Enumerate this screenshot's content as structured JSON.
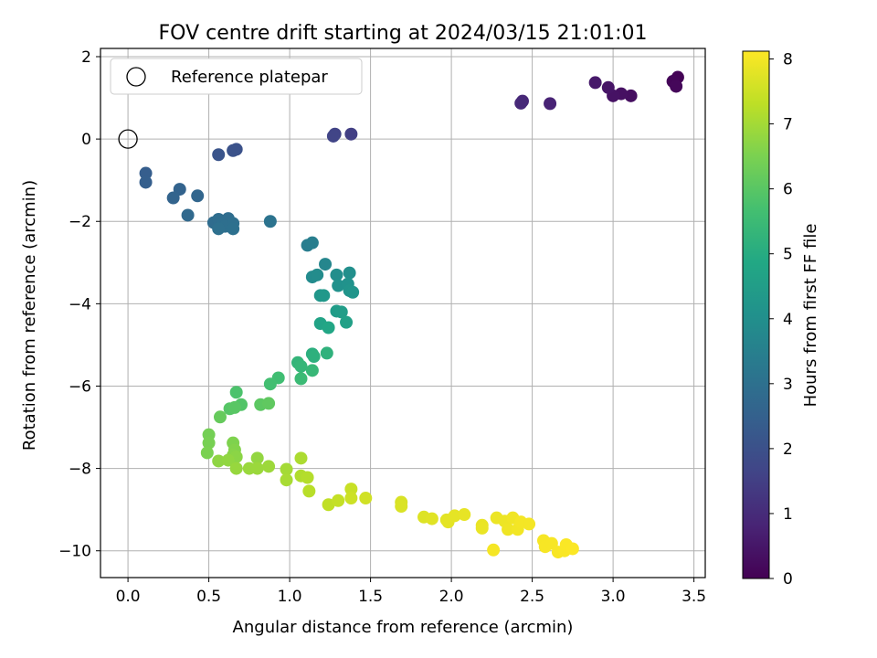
{
  "chart_data": {
    "type": "scatter",
    "title": "FOV centre drift starting at 2024/03/15 21:01:01",
    "xlabel": "Angular distance from reference (arcmin)",
    "ylabel": "Rotation from reference (arcmin)",
    "colorbar_label": "Hours from first FF file",
    "xlim": [
      -0.17,
      3.57
    ],
    "ylim": [
      -10.65,
      2.2
    ],
    "x_ticks": [
      0.0,
      0.5,
      1.0,
      1.5,
      2.0,
      2.5,
      3.0,
      3.5
    ],
    "x_tick_labels": [
      "0.0",
      "0.5",
      "1.0",
      "1.5",
      "2.0",
      "2.5",
      "3.0",
      "3.5"
    ],
    "y_ticks": [
      2,
      0,
      -2,
      -4,
      -6,
      -8,
      -10
    ],
    "y_tick_labels": [
      "2",
      "0",
      "−2",
      "−4",
      "−6",
      "−8",
      "−10"
    ],
    "colorbar_range": [
      0,
      8.12
    ],
    "colorbar_ticks": [
      0,
      1,
      2,
      3,
      4,
      5,
      6,
      7,
      8
    ],
    "colorbar_tick_labels": [
      "0",
      "1",
      "2",
      "3",
      "4",
      "5",
      "6",
      "7",
      "8"
    ],
    "colormap": "viridis",
    "grid": true,
    "legend_position": "upper-left",
    "legend": [
      {
        "label": "Reference platepar",
        "marker": "open-circle"
      }
    ],
    "reference_point": {
      "x": 0.0,
      "y": 0.0
    },
    "points": [
      {
        "x": 3.4,
        "y": 1.5,
        "t": 0.05
      },
      {
        "x": 3.37,
        "y": 1.4,
        "t": 0.1
      },
      {
        "x": 3.39,
        "y": 1.28,
        "t": 0.15
      },
      {
        "x": 3.11,
        "y": 1.05,
        "t": 0.3
      },
      {
        "x": 3.05,
        "y": 1.1,
        "t": 0.35
      },
      {
        "x": 3.0,
        "y": 1.05,
        "t": 0.4
      },
      {
        "x": 2.97,
        "y": 1.25,
        "t": 0.45
      },
      {
        "x": 2.89,
        "y": 1.37,
        "t": 0.55
      },
      {
        "x": 2.61,
        "y": 0.86,
        "t": 0.8
      },
      {
        "x": 2.44,
        "y": 0.92,
        "t": 0.9
      },
      {
        "x": 2.43,
        "y": 0.87,
        "t": 0.95
      },
      {
        "x": 1.38,
        "y": 0.12,
        "t": 1.5
      },
      {
        "x": 1.28,
        "y": 0.12,
        "t": 1.6
      },
      {
        "x": 1.27,
        "y": 0.07,
        "t": 1.65
      },
      {
        "x": 0.67,
        "y": -0.25,
        "t": 2.0
      },
      {
        "x": 0.65,
        "y": -0.28,
        "t": 2.05
      },
      {
        "x": 0.56,
        "y": -0.38,
        "t": 2.1
      },
      {
        "x": 0.11,
        "y": -0.83,
        "t": 2.4
      },
      {
        "x": 0.11,
        "y": -1.05,
        "t": 2.45
      },
      {
        "x": 0.32,
        "y": -1.22,
        "t": 2.55
      },
      {
        "x": 0.28,
        "y": -1.43,
        "t": 2.6
      },
      {
        "x": 0.43,
        "y": -1.38,
        "t": 2.65
      },
      {
        "x": 0.37,
        "y": -1.85,
        "t": 2.75
      },
      {
        "x": 0.53,
        "y": -2.03,
        "t": 2.85
      },
      {
        "x": 0.56,
        "y": -1.95,
        "t": 2.88
      },
      {
        "x": 0.62,
        "y": -1.93,
        "t": 2.9
      },
      {
        "x": 0.58,
        "y": -2.08,
        "t": 2.92
      },
      {
        "x": 0.6,
        "y": -2.12,
        "t": 2.94
      },
      {
        "x": 0.65,
        "y": -2.05,
        "t": 2.96
      },
      {
        "x": 0.56,
        "y": -2.18,
        "t": 2.98
      },
      {
        "x": 0.65,
        "y": -2.18,
        "t": 3.0
      },
      {
        "x": 0.88,
        "y": -2.0,
        "t": 3.1
      },
      {
        "x": 1.11,
        "y": -2.58,
        "t": 3.4
      },
      {
        "x": 1.14,
        "y": -2.52,
        "t": 3.45
      },
      {
        "x": 1.22,
        "y": -3.04,
        "t": 3.7
      },
      {
        "x": 1.14,
        "y": -3.35,
        "t": 3.85
      },
      {
        "x": 1.17,
        "y": -3.3,
        "t": 3.9
      },
      {
        "x": 1.29,
        "y": -3.3,
        "t": 3.95
      },
      {
        "x": 1.37,
        "y": -3.25,
        "t": 4.0
      },
      {
        "x": 1.3,
        "y": -3.56,
        "t": 4.05
      },
      {
        "x": 1.36,
        "y": -3.52,
        "t": 4.1
      },
      {
        "x": 1.37,
        "y": -3.68,
        "t": 4.15
      },
      {
        "x": 1.39,
        "y": -3.72,
        "t": 4.2
      },
      {
        "x": 1.19,
        "y": -3.8,
        "t": 4.25
      },
      {
        "x": 1.21,
        "y": -3.8,
        "t": 4.3
      },
      {
        "x": 1.29,
        "y": -4.18,
        "t": 4.45
      },
      {
        "x": 1.32,
        "y": -4.2,
        "t": 4.5
      },
      {
        "x": 1.35,
        "y": -4.45,
        "t": 4.6
      },
      {
        "x": 1.19,
        "y": -4.48,
        "t": 4.7
      },
      {
        "x": 1.24,
        "y": -4.58,
        "t": 4.8
      },
      {
        "x": 1.14,
        "y": -5.22,
        "t": 5.1
      },
      {
        "x": 1.15,
        "y": -5.28,
        "t": 5.15
      },
      {
        "x": 1.23,
        "y": -5.2,
        "t": 5.2
      },
      {
        "x": 1.05,
        "y": -5.43,
        "t": 5.3
      },
      {
        "x": 1.07,
        "y": -5.52,
        "t": 5.35
      },
      {
        "x": 1.14,
        "y": -5.62,
        "t": 5.4
      },
      {
        "x": 1.07,
        "y": -5.82,
        "t": 5.5
      },
      {
        "x": 0.93,
        "y": -5.8,
        "t": 5.6
      },
      {
        "x": 0.88,
        "y": -5.95,
        "t": 5.65
      },
      {
        "x": 0.67,
        "y": -6.15,
        "t": 5.8
      },
      {
        "x": 0.7,
        "y": -6.45,
        "t": 5.9
      },
      {
        "x": 0.63,
        "y": -6.55,
        "t": 5.95
      },
      {
        "x": 0.66,
        "y": -6.52,
        "t": 6.0
      },
      {
        "x": 0.82,
        "y": -6.45,
        "t": 6.05
      },
      {
        "x": 0.87,
        "y": -6.42,
        "t": 6.1
      },
      {
        "x": 0.57,
        "y": -6.75,
        "t": 6.2
      },
      {
        "x": 0.5,
        "y": -7.18,
        "t": 6.4
      },
      {
        "x": 0.5,
        "y": -7.38,
        "t": 6.45
      },
      {
        "x": 0.49,
        "y": -7.62,
        "t": 6.5
      },
      {
        "x": 0.65,
        "y": -7.38,
        "t": 6.55
      },
      {
        "x": 0.66,
        "y": -7.55,
        "t": 6.6
      },
      {
        "x": 0.65,
        "y": -7.68,
        "t": 6.65
      },
      {
        "x": 0.67,
        "y": -7.72,
        "t": 6.7
      },
      {
        "x": 0.56,
        "y": -7.82,
        "t": 6.75
      },
      {
        "x": 0.62,
        "y": -7.8,
        "t": 6.78
      },
      {
        "x": 0.8,
        "y": -7.75,
        "t": 6.8
      },
      {
        "x": 0.67,
        "y": -8.0,
        "t": 6.85
      },
      {
        "x": 0.75,
        "y": -8.0,
        "t": 6.88
      },
      {
        "x": 0.8,
        "y": -8.0,
        "t": 6.9
      },
      {
        "x": 0.87,
        "y": -7.95,
        "t": 6.92
      },
      {
        "x": 0.98,
        "y": -8.02,
        "t": 7.0
      },
      {
        "x": 0.98,
        "y": -8.28,
        "t": 7.05
      },
      {
        "x": 1.07,
        "y": -7.75,
        "t": 7.1
      },
      {
        "x": 1.07,
        "y": -8.18,
        "t": 7.15
      },
      {
        "x": 1.11,
        "y": -8.22,
        "t": 7.2
      },
      {
        "x": 1.12,
        "y": -8.55,
        "t": 7.25
      },
      {
        "x": 1.24,
        "y": -8.88,
        "t": 7.35
      },
      {
        "x": 1.3,
        "y": -8.78,
        "t": 7.4
      },
      {
        "x": 1.38,
        "y": -8.5,
        "t": 7.45
      },
      {
        "x": 1.38,
        "y": -8.72,
        "t": 7.5
      },
      {
        "x": 1.47,
        "y": -8.72,
        "t": 7.55
      },
      {
        "x": 1.69,
        "y": -8.82,
        "t": 7.65
      },
      {
        "x": 1.69,
        "y": -8.92,
        "t": 7.68
      },
      {
        "x": 1.83,
        "y": -9.18,
        "t": 7.72
      },
      {
        "x": 1.88,
        "y": -9.22,
        "t": 7.75
      },
      {
        "x": 1.97,
        "y": -9.25,
        "t": 7.78
      },
      {
        "x": 1.98,
        "y": -9.3,
        "t": 7.8
      },
      {
        "x": 2.02,
        "y": -9.15,
        "t": 7.82
      },
      {
        "x": 2.08,
        "y": -9.12,
        "t": 7.84
      },
      {
        "x": 2.19,
        "y": -9.38,
        "t": 7.86
      },
      {
        "x": 2.19,
        "y": -9.45,
        "t": 7.88
      },
      {
        "x": 2.28,
        "y": -9.2,
        "t": 7.9
      },
      {
        "x": 2.33,
        "y": -9.28,
        "t": 7.92
      },
      {
        "x": 2.35,
        "y": -9.48,
        "t": 7.94
      },
      {
        "x": 2.38,
        "y": -9.2,
        "t": 7.96
      },
      {
        "x": 2.41,
        "y": -9.48,
        "t": 7.98
      },
      {
        "x": 2.43,
        "y": -9.3,
        "t": 8.0
      },
      {
        "x": 2.48,
        "y": -9.35,
        "t": 8.01
      },
      {
        "x": 2.26,
        "y": -9.98,
        "t": 8.02
      },
      {
        "x": 2.57,
        "y": -9.75,
        "t": 8.03
      },
      {
        "x": 2.58,
        "y": -9.9,
        "t": 8.04
      },
      {
        "x": 2.62,
        "y": -9.82,
        "t": 8.05
      },
      {
        "x": 2.66,
        "y": -10.03,
        "t": 8.06
      },
      {
        "x": 2.7,
        "y": -10.0,
        "t": 8.07
      },
      {
        "x": 2.71,
        "y": -9.85,
        "t": 8.08
      },
      {
        "x": 2.75,
        "y": -9.95,
        "t": 8.1
      }
    ]
  }
}
